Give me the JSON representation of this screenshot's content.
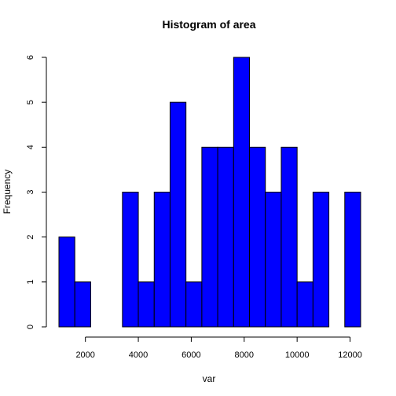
{
  "colors": {
    "bar_fill": "#0000FF",
    "bar_stroke": "#000000",
    "background": "#FFFFFF"
  },
  "chart_data": {
    "type": "bar",
    "title": "Histogram of area",
    "xlabel": "var",
    "ylabel": "Frequency",
    "xlim": [
      1000,
      12200
    ],
    "ylim": [
      0,
      6
    ],
    "xticks": [
      2000,
      4000,
      6000,
      8000,
      10000,
      12000
    ],
    "yticks": [
      0,
      1,
      2,
      3,
      4,
      5,
      6
    ],
    "bins": [
      {
        "x0": 1000,
        "x1": 1600,
        "count": 2
      },
      {
        "x0": 1600,
        "x1": 2200,
        "count": 1
      },
      {
        "x0": 2200,
        "x1": 2800,
        "count": 0
      },
      {
        "x0": 2800,
        "x1": 3400,
        "count": 0
      },
      {
        "x0": 3400,
        "x1": 4000,
        "count": 3
      },
      {
        "x0": 4000,
        "x1": 4600,
        "count": 1
      },
      {
        "x0": 4600,
        "x1": 5200,
        "count": 3
      },
      {
        "x0": 5200,
        "x1": 5800,
        "count": 5
      },
      {
        "x0": 5800,
        "x1": 6400,
        "count": 1
      },
      {
        "x0": 6400,
        "x1": 7000,
        "count": 4
      },
      {
        "x0": 7000,
        "x1": 7600,
        "count": 4
      },
      {
        "x0": 7600,
        "x1": 8200,
        "count": 6
      },
      {
        "x0": 8200,
        "x1": 8800,
        "count": 4
      },
      {
        "x0": 8800,
        "x1": 9400,
        "count": 3
      },
      {
        "x0": 9400,
        "x1": 10000,
        "count": 4
      },
      {
        "x0": 10000,
        "x1": 10600,
        "count": 1
      },
      {
        "x0": 10600,
        "x1": 11200,
        "count": 3
      },
      {
        "x0": 11200,
        "x1": 11800,
        "count": 0
      },
      {
        "x0": 11800,
        "x1": 12400,
        "count": 3
      }
    ]
  }
}
